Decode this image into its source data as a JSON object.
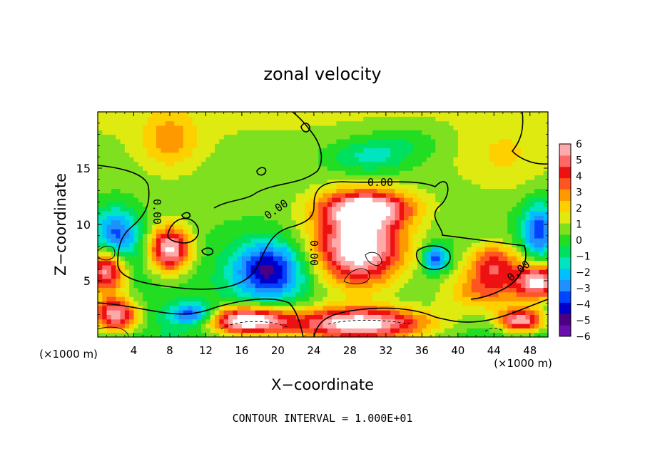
{
  "chart_data": {
    "type": "heatmap",
    "title": "zonal velocity",
    "xlabel": "X−coordinate",
    "ylabel": "Z−coordinate",
    "x_unit_left": "(×1000 m)",
    "x_unit_right": "(×1000 m)",
    "xlim": [
      0,
      50
    ],
    "ylim": [
      0,
      20
    ],
    "x_ticks": [
      4,
      8,
      12,
      16,
      20,
      24,
      28,
      32,
      36,
      40,
      44,
      48
    ],
    "x_tick_labels": [
      "4",
      "8",
      "12",
      "16",
      "20",
      "24",
      "28",
      "32",
      "36",
      "40",
      "44",
      "48"
    ],
    "y_ticks": [
      5,
      10,
      15
    ],
    "y_tick_labels": [
      "5",
      "10",
      "15"
    ],
    "colorbar": {
      "min": -6,
      "max": 6,
      "tick_labels": [
        "6",
        "5",
        "4",
        "3",
        "2",
        "1",
        "0",
        "−1",
        "−2",
        "−3",
        "−4",
        "−5",
        "−6"
      ],
      "colors": [
        "#6a0dad",
        "#4b0082",
        "#0000cd",
        "#0044ff",
        "#1e90ff",
        "#00bfff",
        "#00e5c0",
        "#00e060",
        "#22dd22",
        "#7fe020",
        "#dfea10",
        "#ffd000",
        "#ff9900",
        "#ff5522",
        "#ee1111",
        "#ff6666",
        "#ffaaaa"
      ]
    },
    "contour_labels": [
      "0.00",
      "0.00",
      "0.00",
      "0.00",
      "0.00"
    ],
    "footer": "CONTOUR INTERVAL = 1.000E+01",
    "features": [
      {
        "x": 29,
        "z": 8,
        "value": 7,
        "rx": 5,
        "rz": 3.5
      },
      {
        "x": 30,
        "z": 11.5,
        "value": 5,
        "rx": 5,
        "rz": 1.5
      },
      {
        "x": 8,
        "z": 7.8,
        "value": 6,
        "rx": 2.2,
        "rz": 2
      },
      {
        "x": 29,
        "z": 1.2,
        "value": 7,
        "rx": 8,
        "rz": 1.5
      },
      {
        "x": 16.5,
        "z": 1.5,
        "value": 7,
        "rx": 4.5,
        "rz": 1.2
      },
      {
        "x": 44,
        "z": 6.5,
        "value": 4,
        "rx": 3,
        "rz": 1.8
      },
      {
        "x": 43,
        "z": 4,
        "value": 3,
        "rx": 5,
        "rz": 1.8
      },
      {
        "x": 19,
        "z": 6,
        "value": -5,
        "rx": 4,
        "rz": 2.5
      },
      {
        "x": 2,
        "z": 9,
        "value": -4,
        "rx": 2.5,
        "rz": 2.5
      },
      {
        "x": 49,
        "z": 9.5,
        "value": -4,
        "rx": 2,
        "rz": 2.5
      },
      {
        "x": 30,
        "z": 16,
        "value": -2,
        "rx": 5,
        "rz": 1.5
      },
      {
        "x": 37.5,
        "z": 7,
        "value": -4,
        "rx": 1.4,
        "rz": 1.2
      },
      {
        "x": 8,
        "z": 17.5,
        "value": 2,
        "rx": 3,
        "rz": 2.5
      },
      {
        "x": 45,
        "z": 16,
        "value": 1,
        "rx": 5,
        "rz": 3
      },
      {
        "x": 1,
        "z": 6,
        "value": 6,
        "rx": 2,
        "rz": 2
      },
      {
        "x": 49,
        "z": 5,
        "value": 6,
        "rx": 2.5,
        "rz": 1.5
      },
      {
        "x": 10.5,
        "z": 2,
        "value": -4,
        "rx": 2.5,
        "rz": 1
      },
      {
        "x": 47,
        "z": 1.5,
        "value": 6,
        "rx": 2.5,
        "rz": 1
      },
      {
        "x": 2,
        "z": 2,
        "value": 6,
        "rx": 2.5,
        "rz": 1.5
      },
      {
        "x": 34,
        "z": 17.5,
        "value": -1,
        "rx": 5,
        "rz": 1.5
      }
    ]
  }
}
